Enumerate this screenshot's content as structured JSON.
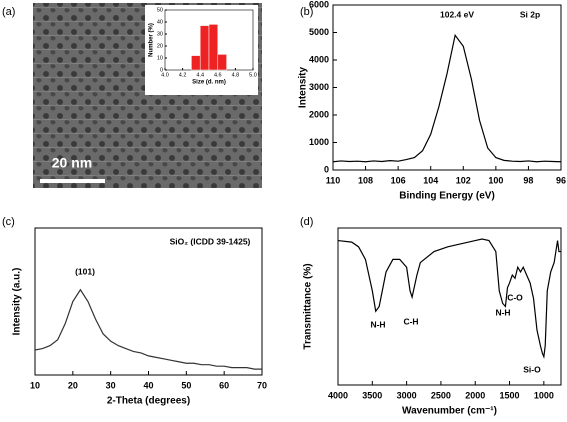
{
  "chart_data": [
    {
      "type": "histogram",
      "panel_label": "(a)",
      "scale_bar": "20 nm",
      "xlabel": "Size (d. nm)",
      "ylabel": "Number (%)",
      "bins": [
        4.3,
        4.4,
        4.5,
        4.6,
        4.7
      ],
      "values": [
        12,
        37,
        38,
        13
      ],
      "color": "#ee2222",
      "xlim": [
        4,
        5
      ],
      "ylim": [
        0,
        50
      ],
      "xticks": [
        {
          "value": 4,
          "label": "4.0"
        },
        4.2,
        4.4,
        4.6,
        4.8,
        {
          "value": 5,
          "label": "5.0"
        }
      ],
      "yticks": [
        0,
        10,
        20,
        30,
        40,
        50
      ]
    },
    {
      "type": "line",
      "panel_label": "(b)",
      "xlabel": "Binding Energy (eV)",
      "ylabel": "Intensity",
      "annotations": [
        "102.4 eV",
        "Si 2p"
      ],
      "x": [
        110,
        109.5,
        109,
        108.5,
        108,
        107.5,
        107,
        106.5,
        106,
        105.5,
        105,
        104.5,
        104,
        103.5,
        103,
        102.5,
        102,
        101.5,
        101,
        100.5,
        100,
        99.5,
        99,
        98.5,
        98,
        97.5,
        97,
        96.5,
        96
      ],
      "values": [
        300,
        330,
        310,
        320,
        300,
        330,
        310,
        340,
        320,
        380,
        450,
        700,
        1300,
        2300,
        3500,
        4900,
        4500,
        3300,
        1800,
        800,
        450,
        350,
        320,
        310,
        330,
        300,
        320,
        310,
        300
      ],
      "color": "#000000",
      "xlim": [
        110,
        96
      ],
      "ylim": [
        0,
        6000
      ],
      "xticks": [
        110,
        108,
        106,
        104,
        102,
        100,
        98,
        96
      ],
      "yticks": [
        0,
        1000,
        2000,
        3000,
        4000,
        5000,
        6000
      ]
    },
    {
      "type": "line",
      "panel_label": "(c)",
      "xlabel": "2-Theta (degrees)",
      "ylabel": "Intensity (a.u.)",
      "annotations": [
        "(101)",
        "SiO₂ (ICDD 39-1425)"
      ],
      "x": [
        10,
        12,
        14,
        16,
        18,
        20,
        22,
        24,
        26,
        28,
        30,
        32,
        34,
        36,
        38,
        40,
        42,
        44,
        46,
        48,
        50,
        52,
        54,
        56,
        58,
        60,
        62,
        64,
        66,
        68,
        70
      ],
      "values": [
        17,
        18,
        20,
        24,
        35,
        50,
        58,
        50,
        38,
        28,
        23,
        20,
        18,
        16,
        15,
        13,
        12,
        11,
        10,
        9,
        8,
        8,
        7,
        7,
        6,
        6,
        5,
        5,
        5,
        4,
        4
      ],
      "color": "#333333",
      "xlim": [
        10,
        70
      ],
      "ylim": [
        0,
        100
      ],
      "xticks": [
        10,
        20,
        30,
        40,
        50,
        60,
        70
      ]
    },
    {
      "type": "line",
      "panel_label": "(d)",
      "xlabel": "Wavenumber (cm⁻¹)",
      "ylabel": "Transmittance (%)",
      "annotations": [
        "N-H",
        "C-H",
        "N-H",
        "C-O",
        "Si-O"
      ],
      "x": [
        4000,
        3800,
        3700,
        3600,
        3500,
        3450,
        3400,
        3300,
        3200,
        3100,
        3000,
        2950,
        2920,
        2850,
        2800,
        2600,
        2400,
        2200,
        2000,
        1900,
        1800,
        1700,
        1650,
        1600,
        1560,
        1530,
        1500,
        1460,
        1420,
        1380,
        1340,
        1300,
        1250,
        1200,
        1150,
        1100,
        1050,
        1020,
        1000,
        980,
        950,
        900,
        850,
        800,
        780,
        750
      ],
      "values": [
        92,
        91,
        88,
        80,
        60,
        47,
        50,
        72,
        80,
        80,
        75,
        60,
        56,
        70,
        78,
        85,
        88,
        90,
        92,
        93,
        92,
        85,
        60,
        52,
        50,
        62,
        65,
        70,
        68,
        75,
        72,
        75,
        70,
        65,
        55,
        35,
        25,
        20,
        18,
        25,
        60,
        72,
        78,
        92,
        85,
        85
      ],
      "color": "#000000",
      "xlim": [
        4000,
        750
      ],
      "ylim": [
        0,
        100
      ],
      "xticks": [
        4000,
        3500,
        3000,
        2500,
        2000,
        1500,
        1000
      ]
    }
  ]
}
